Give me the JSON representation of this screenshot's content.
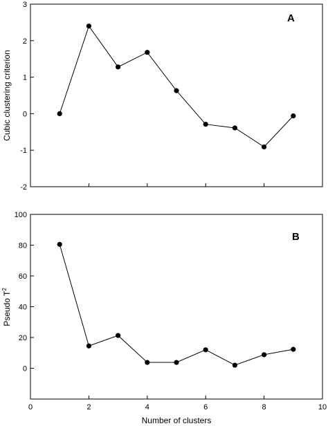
{
  "chart_data": [
    {
      "type": "line",
      "panel_label": "A",
      "ylabel": "Cubic clustering criterion",
      "xlabel": "",
      "xlim": [
        0,
        10
      ],
      "ylim": [
        -2,
        3
      ],
      "x_ticks": [
        0,
        2,
        4,
        6,
        8,
        10
      ],
      "y_ticks": [
        -2,
        -1,
        0,
        1,
        2,
        3
      ],
      "x_tick_labels_shown": false,
      "grid": false,
      "series": [
        {
          "x": [
            1,
            2,
            3,
            4,
            5,
            6,
            7,
            8,
            9
          ],
          "y": [
            0.0,
            2.4,
            1.28,
            1.68,
            0.63,
            -0.29,
            -0.39,
            -0.91,
            -0.06
          ]
        }
      ]
    },
    {
      "type": "line",
      "panel_label": "B",
      "ylabel": "Pseudo T",
      "ylabel_superscript": "2",
      "xlabel": "Number of clusters",
      "xlim": [
        0,
        10
      ],
      "ylim": [
        -20,
        100
      ],
      "x_ticks": [
        0,
        2,
        4,
        6,
        8,
        10
      ],
      "y_ticks": [
        0,
        20,
        40,
        60,
        80,
        100
      ],
      "x_tick_labels_shown": true,
      "grid": false,
      "series": [
        {
          "x": [
            1,
            2,
            3,
            4,
            5,
            6,
            7,
            8,
            9
          ],
          "y": [
            80.5,
            14.5,
            21.3,
            3.8,
            3.8,
            12.0,
            2.0,
            8.8,
            12.3
          ]
        }
      ]
    }
  ]
}
